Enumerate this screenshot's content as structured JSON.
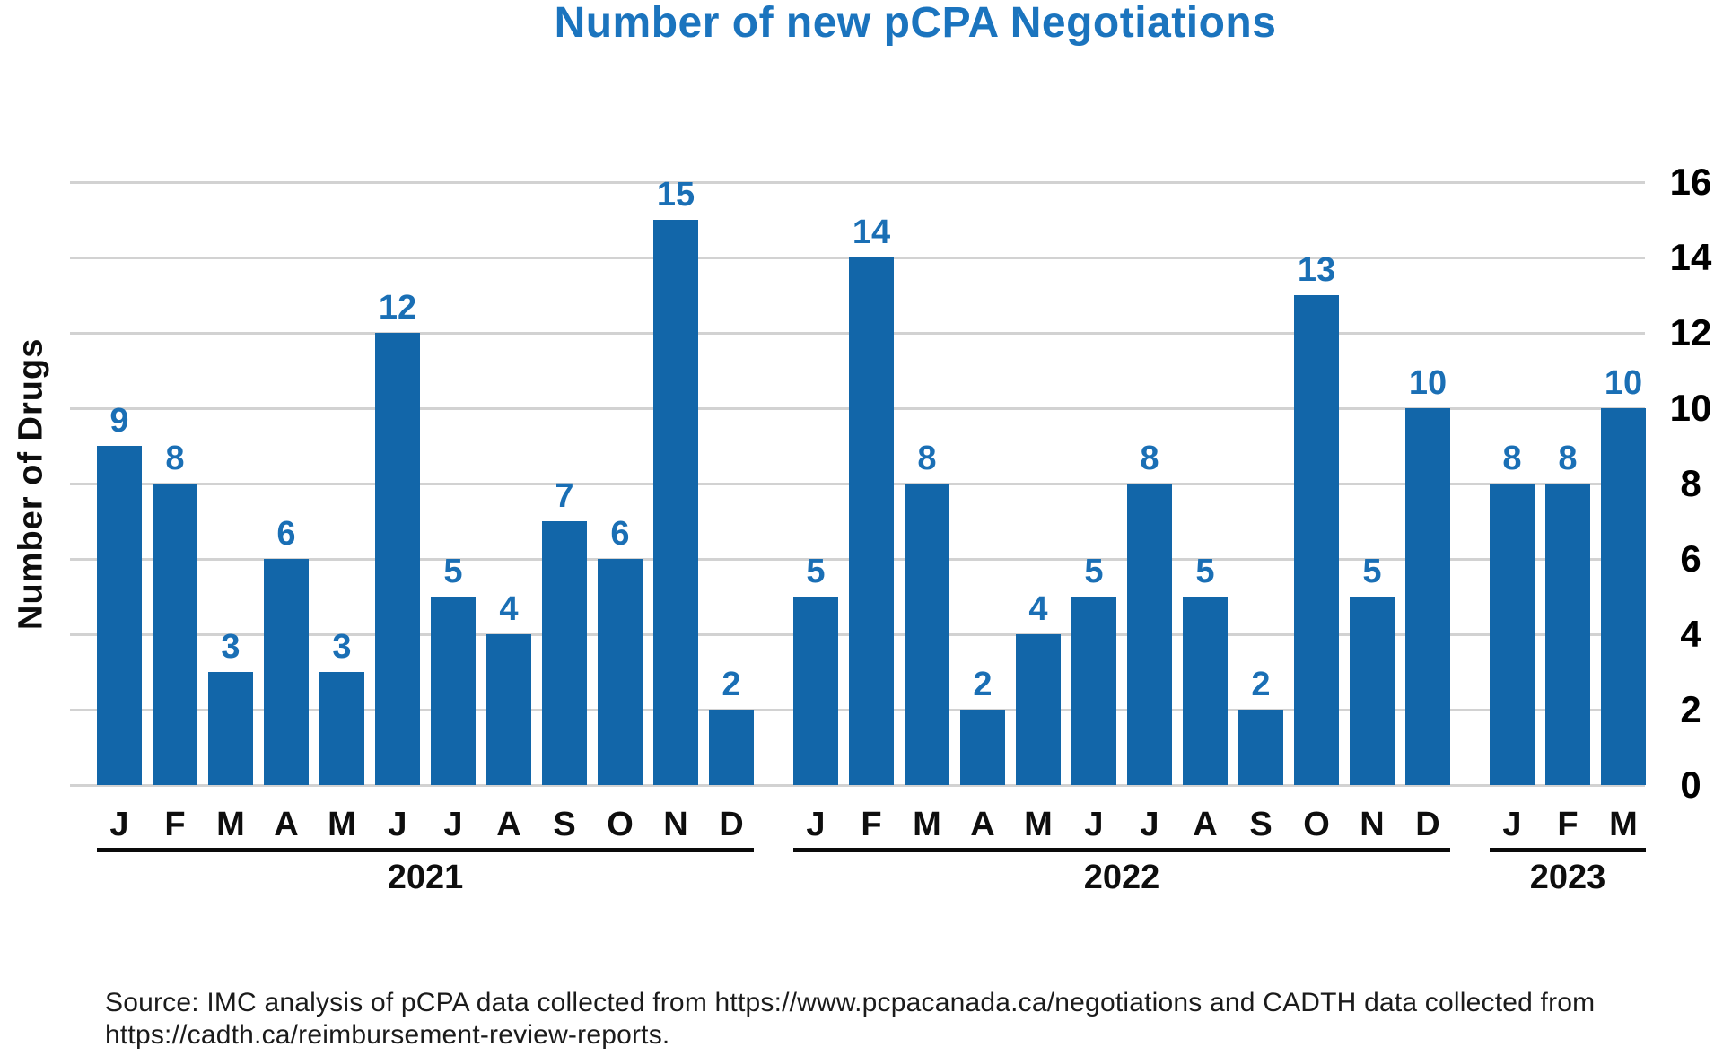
{
  "title": "Number of new pCPA Negotiations",
  "y_axis": {
    "label": "Number of Drugs",
    "ticks": [
      "16",
      "14",
      "12",
      "10",
      "8",
      "6",
      "4",
      "2",
      "0"
    ],
    "max": 16,
    "step": 2,
    "side": "right"
  },
  "source": {
    "line1": "Source: IMC analysis of pCPA data collected from https://www.pcpacanada.ca/negotiations and CADTH data collected from",
    "line2": "https://cadth.ca/reimbursement-review-reports."
  },
  "colors": {
    "bar": "#1266A9",
    "data_label": "#1A6FB5",
    "title": "#1B74BE",
    "gridline": "#D2D2D2",
    "text": "#0E0E0E"
  },
  "chart_data": {
    "type": "bar",
    "title": "Number of new pCPA Negotiations",
    "ylabel": "Number of Drugs",
    "ylim": [
      0,
      16
    ],
    "grid": true,
    "grid_step": 2,
    "legend": false,
    "groups": [
      {
        "year": "2021",
        "categories": [
          "J",
          "F",
          "M",
          "A",
          "M",
          "J",
          "J",
          "A",
          "S",
          "O",
          "N",
          "D"
        ],
        "values": [
          9,
          8,
          3,
          6,
          3,
          12,
          5,
          4,
          7,
          6,
          15,
          2
        ]
      },
      {
        "year": "2022",
        "categories": [
          "J",
          "F",
          "M",
          "A",
          "M",
          "J",
          "J",
          "A",
          "S",
          "O",
          "N",
          "D"
        ],
        "values": [
          5,
          14,
          8,
          2,
          4,
          5,
          8,
          5,
          2,
          13,
          5,
          10
        ]
      },
      {
        "year": "2023",
        "categories": [
          "J",
          "F",
          "M"
        ],
        "values": [
          8,
          8,
          10
        ]
      }
    ]
  }
}
